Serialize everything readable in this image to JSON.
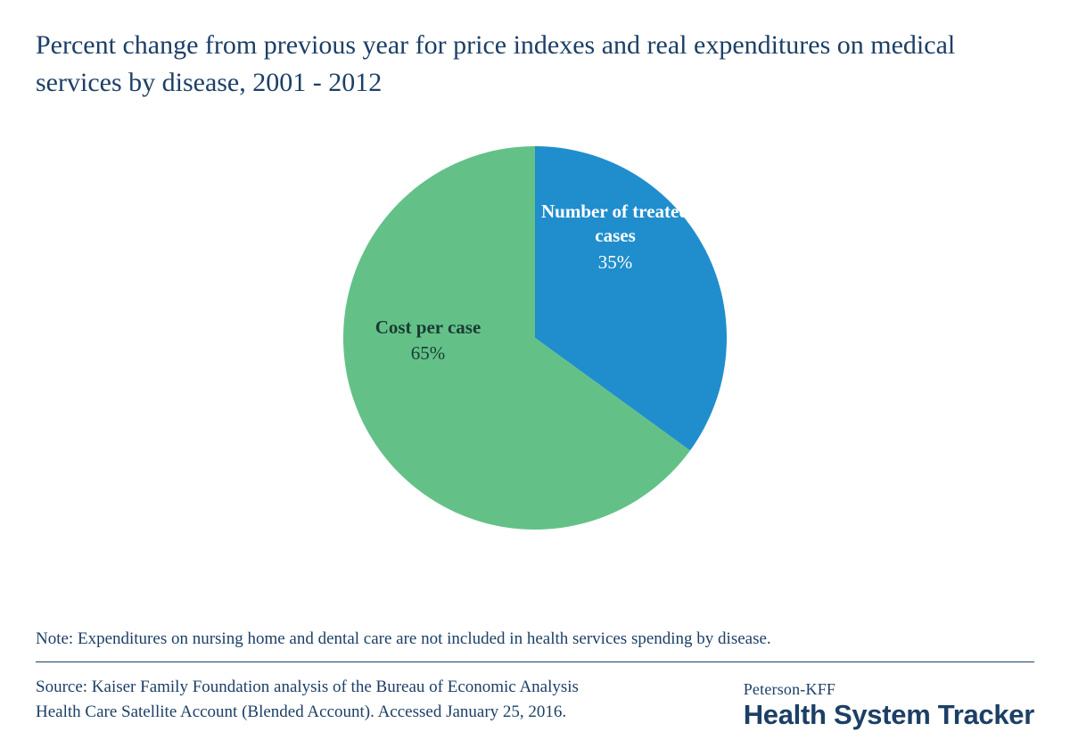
{
  "title": "Percent change from previous year for price indexes and real expenditures on medical services by disease, 2001 - 2012",
  "chart": {
    "type": "pie",
    "background_color": "#ffffff",
    "radius": 215,
    "start_angle_deg": -90,
    "slices": [
      {
        "label": "Number of treated cases",
        "value": 35,
        "pct_text": "35%",
        "color": "#208ecd",
        "label_color": "#ffffff"
      },
      {
        "label": "Cost per case",
        "value": 65,
        "pct_text": "65%",
        "color": "#63c188",
        "label_color": "#1a3b33"
      }
    ],
    "label_fontsize": 21,
    "label_fontweight": "bold"
  },
  "note": "Note: Expenditures on nursing home and dental care are not included in health services spending by disease.",
  "source": "Source: Kaiser Family Foundation analysis of the Bureau of Economic Analysis Health Care Satellite Account (Blended Account). Accessed January 25, 2016.",
  "logo": {
    "top": "Peterson-KFF",
    "bottom": "Health System Tracker",
    "color": "#1c3f66"
  },
  "title_color": "#1c3f66",
  "title_fontsize": 30
}
